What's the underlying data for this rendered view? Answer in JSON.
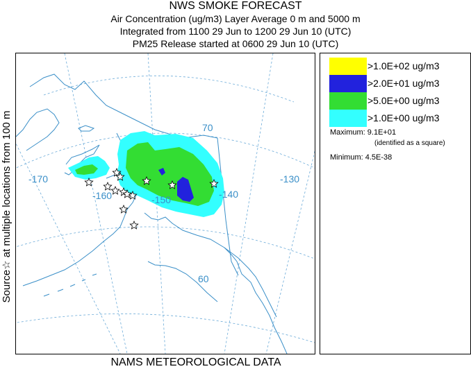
{
  "header": {
    "title": "NWS SMOKE FORECAST",
    "line1": "Air Concentration (ug/m3) Layer Average    0 m and  5000 m",
    "line2": "Integrated from 1100 29 Jun to 1200 29 Jun 10 (UTC)",
    "line3": "PM25 Release started at 0600 29 Jun 10 (UTC)"
  },
  "side_label": "Source☆   at multiple locations   from   100 m",
  "footer": "NAMS METEOROLOGICAL DATA",
  "map": {
    "grid_labels": {
      "lat_70": "70",
      "lat_60": "60",
      "lon_m170": "-170",
      "lon_m160": "-160",
      "lon_m150": "-150",
      "lon_m140": "-140",
      "lon_m130": "-130"
    },
    "colors": {
      "coast": "#3a8fc8",
      "grid": "#6aaad8",
      "level_1": "#33ffff",
      "level_2": "#33dd33",
      "level_3": "#2222dd",
      "level_4": "#ffff00"
    },
    "source_marker": "star-icon"
  },
  "legend": {
    "entries": [
      {
        "label": ">1.0E+02 ug/m3",
        "color": "#ffff00"
      },
      {
        "label": ">2.0E+01 ug/m3",
        "color": "#2222dd"
      },
      {
        "label": ">5.0E+00 ug/m3",
        "color": "#33dd33"
      },
      {
        "label": ">1.0E+00 ug/m3",
        "color": "#33ffff"
      }
    ],
    "maximum": "Maximum: 9.1E+01",
    "maximum_note": "(identified as a square)",
    "minimum": "Minimum: 4.5E-38"
  }
}
